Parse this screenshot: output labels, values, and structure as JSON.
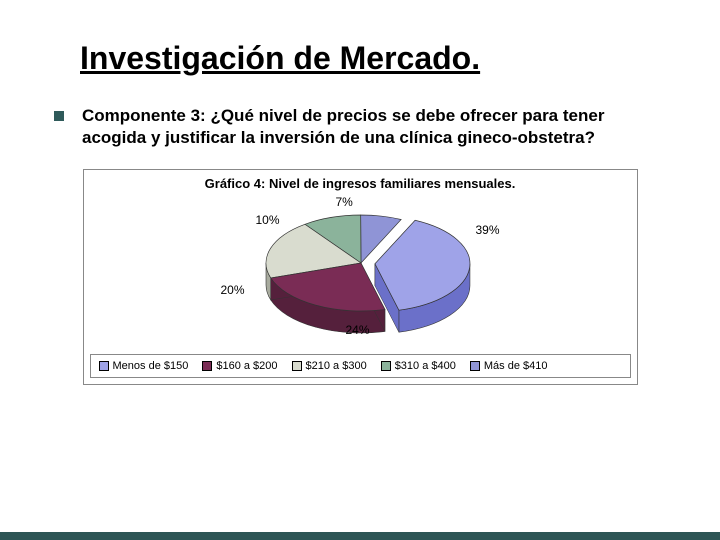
{
  "slide": {
    "title": "Investigación de Mercado.",
    "bullet_color": "#2f5a5a",
    "body_text": "Componente 3: ¿Qué nivel de precios se debe ofrecer para tener acogida y justificar la inversión de una clínica gineco-obstetra?"
  },
  "chart": {
    "type": "pie-3d",
    "title": "Gráfico 4: Nivel de ingresos familiares mensuales.",
    "title_fontsize": 13,
    "background_color": "#ffffff",
    "border_color": "#888888",
    "slices": [
      {
        "label": "Menos de $150",
        "value": 39,
        "display": "39%",
        "color_top": "#9fa3e8",
        "color_side": "#6b70c9"
      },
      {
        "label": "$160 a $200",
        "value": 24,
        "display": "24%",
        "color_top": "#7a2c55",
        "color_side": "#55203c"
      },
      {
        "label": "$210 a $300",
        "value": 20,
        "display": "20%",
        "color_top": "#d9dccf",
        "color_side": "#a8ab9e"
      },
      {
        "label": "$310 a $400",
        "value": 10,
        "display": "10%",
        "color_top": "#8bb39b",
        "color_side": "#5e8c73"
      },
      {
        "label": "Más de $410",
        "value": 7,
        "display": "7%",
        "color_top": "#8f94d6",
        "color_side": "#6167a8"
      }
    ],
    "label_fontsize": 12,
    "legend": {
      "border_color": "#888888",
      "items": [
        {
          "text": "Menos de $150",
          "swatch": "#9fa3e8"
        },
        {
          "text": "$160 a $200",
          "swatch": "#7a2c55"
        },
        {
          "text": "$210 a $300",
          "swatch": "#d9dccf"
        },
        {
          "text": "$310 a $400",
          "swatch": "#8bb39b"
        },
        {
          "text": "Más de $410",
          "swatch": "#8f94d6"
        }
      ]
    }
  },
  "footer_stripe_color": "#2d5555"
}
